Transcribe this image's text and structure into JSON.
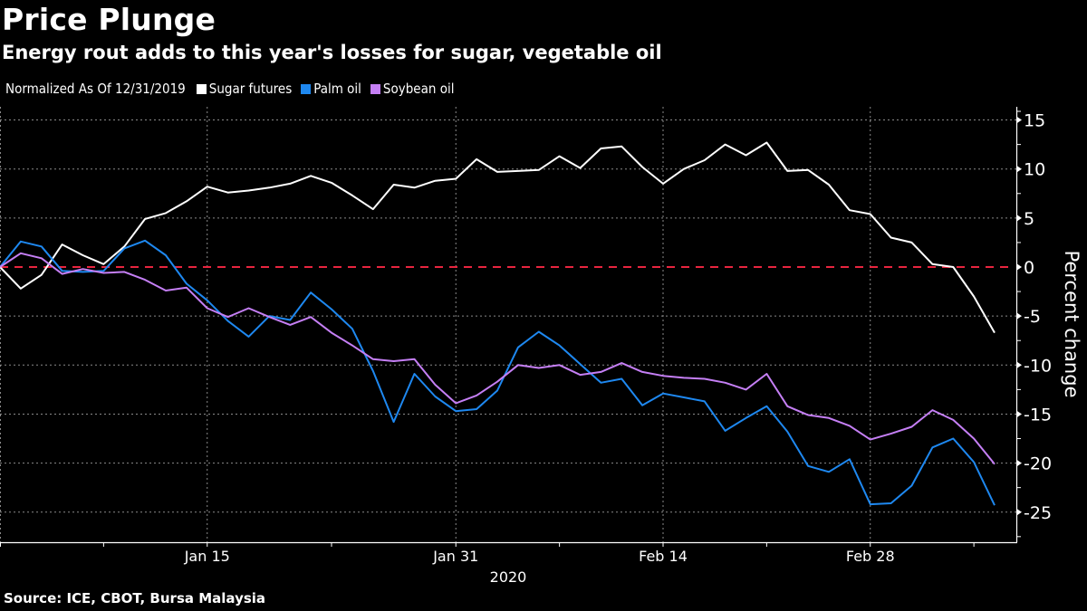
{
  "title": "Price Plunge",
  "subtitle": "Energy rout adds to this year's losses for sugar, vegetable oil",
  "source": "Source: ICE, CBOT, Bursa Malaysia",
  "legend": {
    "note": "Normalized As Of 12/31/2019",
    "items": [
      {
        "label": "Sugar futures",
        "color": "#ffffff"
      },
      {
        "label": "Palm oil",
        "color": "#1e88f0"
      },
      {
        "label": "Soybean oil",
        "color": "#c57ff5"
      }
    ]
  },
  "chart_data": {
    "type": "line",
    "title": "Price Plunge",
    "subtitle": "Energy rout adds to this year's losses for sugar, vegetable oil",
    "xlabel": "2020",
    "ylabel": "Percent change",
    "ylim": [
      -27,
      17
    ],
    "yticks": [
      15,
      10,
      5,
      0,
      -5,
      -10,
      -15,
      -20,
      -25
    ],
    "x_count": 49,
    "xticks": [
      {
        "index": 10,
        "label": "Jan 15"
      },
      {
        "index": 22,
        "label": "Jan 31"
      },
      {
        "index": 32,
        "label": "Feb 14"
      },
      {
        "index": 42,
        "label": "Feb 28"
      }
    ],
    "x_minor_ticks": [
      5,
      16,
      27,
      37,
      47
    ],
    "x_year_label": "2020",
    "reference_line": {
      "value": 0,
      "color": "#e8253f",
      "style": "dashed"
    },
    "grid": true,
    "legend_position": "top-left",
    "series": [
      {
        "name": "Sugar futures",
        "color": "#ffffff",
        "values": [
          0,
          -2.2,
          -0.8,
          2.3,
          1.2,
          0.3,
          2.1,
          4.9,
          5.5,
          6.7,
          8.2,
          7.6,
          7.8,
          8.1,
          8.5,
          9.3,
          8.6,
          7.3,
          5.9,
          8.4,
          8.1,
          8.8,
          9.0,
          11.0,
          9.7,
          9.8,
          9.9,
          11.3,
          10.1,
          12.1,
          12.3,
          10.2,
          8.5,
          10.0,
          10.9,
          12.5,
          11.4,
          12.7,
          9.8,
          9.9,
          8.4,
          5.8,
          5.4,
          3.0,
          2.5,
          0.3,
          0.0,
          -3.0,
          -6.7
        ]
      },
      {
        "name": "Palm oil",
        "color": "#1e88f0",
        "values": [
          0,
          2.6,
          2.1,
          -0.4,
          -0.5,
          -0.4,
          1.9,
          2.7,
          1.2,
          -1.7,
          -3.4,
          -5.5,
          -7.1,
          -5.0,
          -5.4,
          -2.6,
          -4.3,
          -6.3,
          -10.6,
          -15.8,
          -10.9,
          -13.2,
          -14.7,
          -14.5,
          -12.6,
          -8.2,
          -6.6,
          -8.0,
          -9.9,
          -11.8,
          -11.4,
          -14.1,
          -12.9,
          -13.3,
          -13.7,
          -16.7,
          -15.4,
          -14.2,
          -16.8,
          -20.3,
          -20.9,
          -19.6,
          -24.2,
          -24.1,
          -22.3,
          -18.4,
          -17.5,
          -19.9,
          -24.3
        ]
      },
      {
        "name": "Soybean oil",
        "color": "#c57ff5",
        "values": [
          0,
          1.4,
          0.9,
          -0.7,
          -0.2,
          -0.6,
          -0.5,
          -1.3,
          -2.4,
          -2.1,
          -4.2,
          -5.1,
          -4.2,
          -5.1,
          -5.9,
          -5.1,
          -6.7,
          -8.0,
          -9.4,
          -9.6,
          -9.4,
          -12.0,
          -13.9,
          -13.1,
          -11.7,
          -10.0,
          -10.3,
          -10.0,
          -11.0,
          -10.7,
          -9.8,
          -10.7,
          -11.1,
          -11.3,
          -11.4,
          -11.8,
          -12.5,
          -10.9,
          -14.2,
          -15.1,
          -15.4,
          -16.2,
          -17.6,
          -17.0,
          -16.3,
          -14.6,
          -15.6,
          -17.5,
          -20.1
        ]
      }
    ]
  }
}
